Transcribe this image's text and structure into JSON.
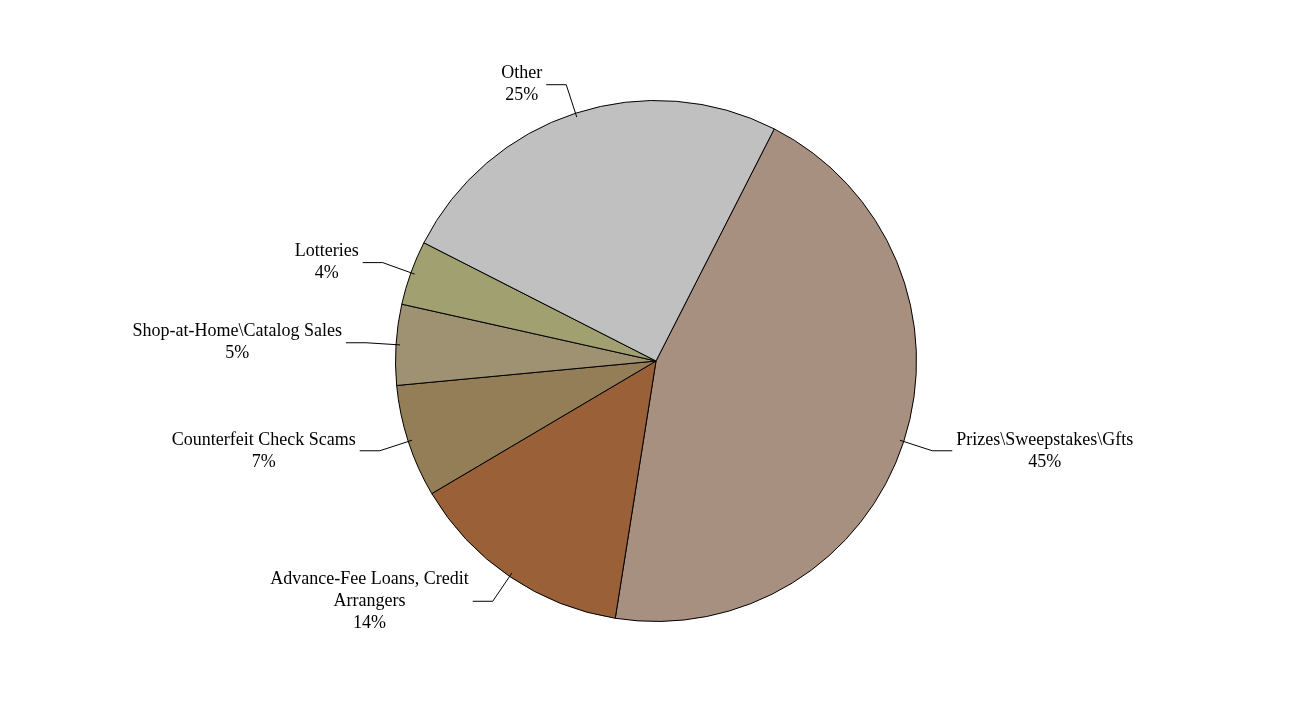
{
  "chart_data": {
    "type": "pie",
    "categories": [
      "Prizes\\Sweepstakes\\Gfts",
      "Advance-Fee Loans, Credit Arrangers",
      "Counterfeit Check Scams",
      "Shop-at-Home\\Catalog Sales",
      "Lotteries",
      "Other"
    ],
    "values": [
      45,
      14,
      7,
      5,
      4,
      25
    ],
    "value_labels": [
      "45%",
      "14%",
      "7%",
      "5%",
      "4%",
      "25%"
    ],
    "colors": [
      "#a89080",
      "#9a6038",
      "#947e58",
      "#9e9272",
      "#a0a070",
      "#c0c0c0"
    ],
    "legend": false
  }
}
